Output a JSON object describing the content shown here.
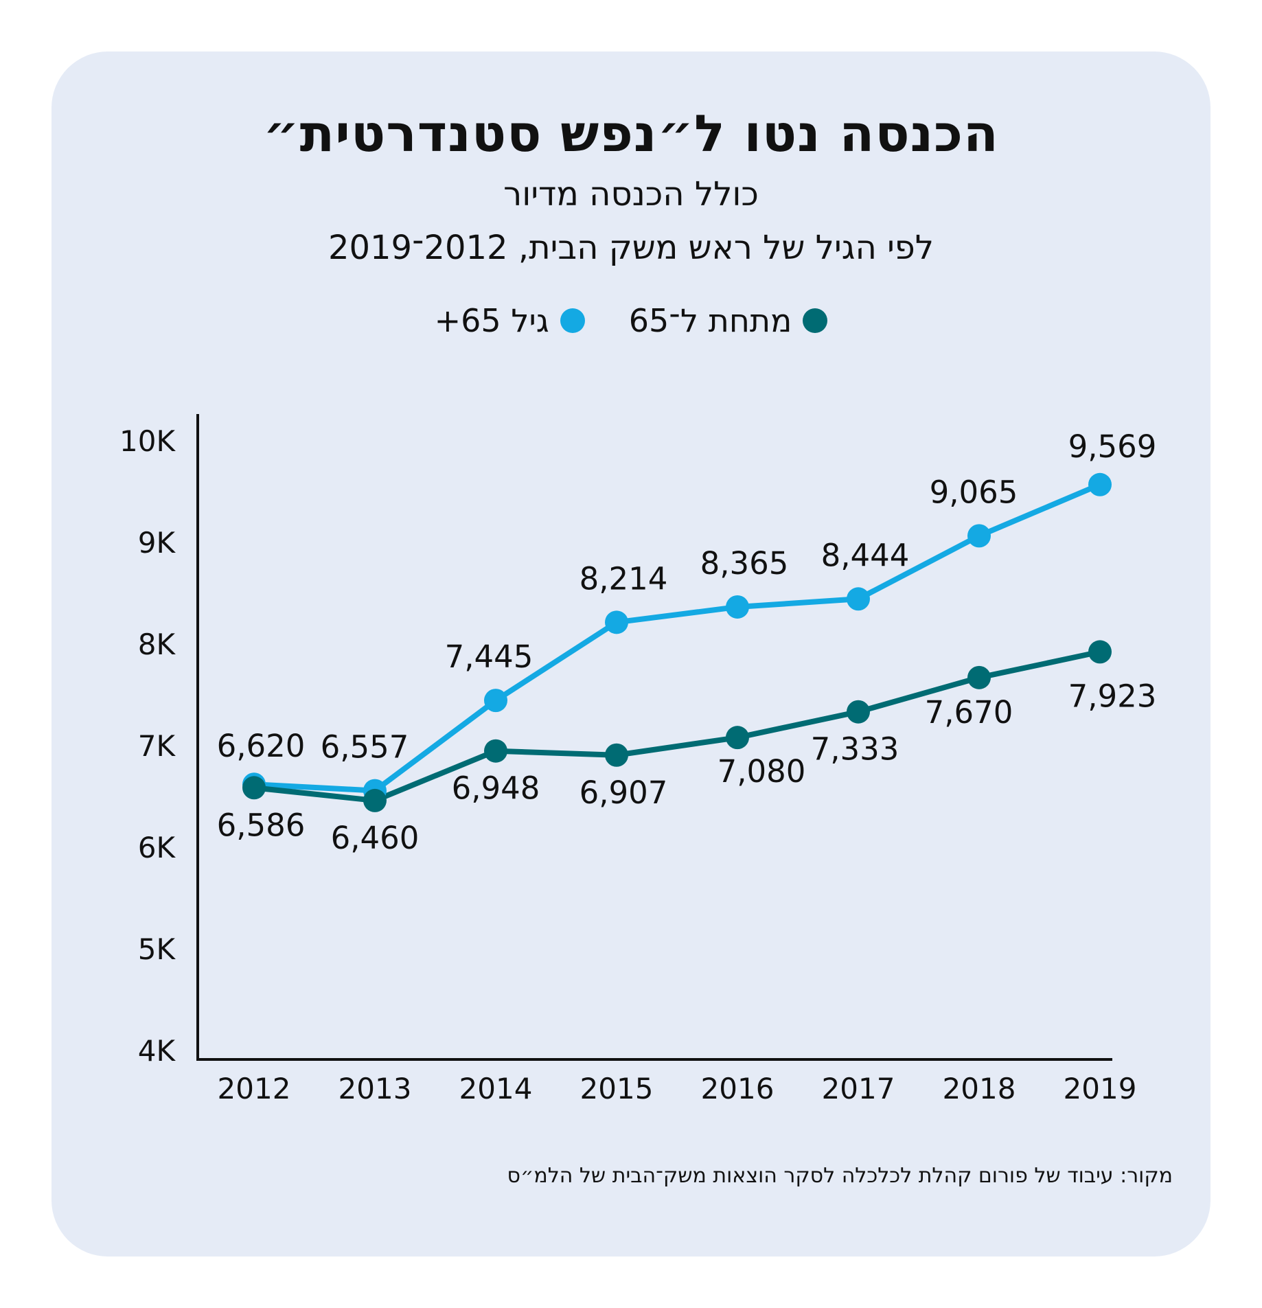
{
  "title": "הכנסה נטו ל״נפש סטנדרטית״",
  "subtitle1": "כולל הכנסה מדיור",
  "subtitle2": "לפי הגיל של ראש משק הבית, 2012־2019",
  "source": "מקור: עיבוד של פורום קהלת לכלכלה לסקר הוצאות משק־הבית של הלמ״ס",
  "legend": [
    {
      "label": "מתחת ל־65",
      "color": "#006b73"
    },
    {
      "label": "גיל 65+",
      "color": "#14a9e3"
    }
  ],
  "chart_data": {
    "type": "line",
    "x": [
      "2012",
      "2013",
      "2014",
      "2015",
      "2016",
      "2017",
      "2018",
      "2019"
    ],
    "ylim": [
      4000,
      10000
    ],
    "yticks": [
      4000,
      5000,
      6000,
      7000,
      8000,
      9000,
      10000
    ],
    "yticklabels": [
      "4K",
      "5K",
      "6K",
      "7K",
      "8K",
      "9K",
      "10K"
    ],
    "grid": false,
    "legend_position": "top-center",
    "series": [
      {
        "name": "גיל 65+",
        "color": "#14a9e3",
        "values": [
          6620,
          6557,
          7445,
          8214,
          8365,
          8444,
          9065,
          9569
        ],
        "labels": [
          "6,620",
          "6,557",
          "7,445",
          "8,214",
          "8,365",
          "8,444",
          "9,065",
          "9,569"
        ]
      },
      {
        "name": "מתחת ל־65",
        "color": "#006b73",
        "values": [
          6586,
          6460,
          6948,
          6907,
          7080,
          7333,
          7670,
          7923
        ],
        "labels": [
          "6,586",
          "6,460",
          "6,948",
          "6,907",
          "7,080",
          "7,333",
          "7,670",
          "7,923"
        ]
      }
    ]
  }
}
